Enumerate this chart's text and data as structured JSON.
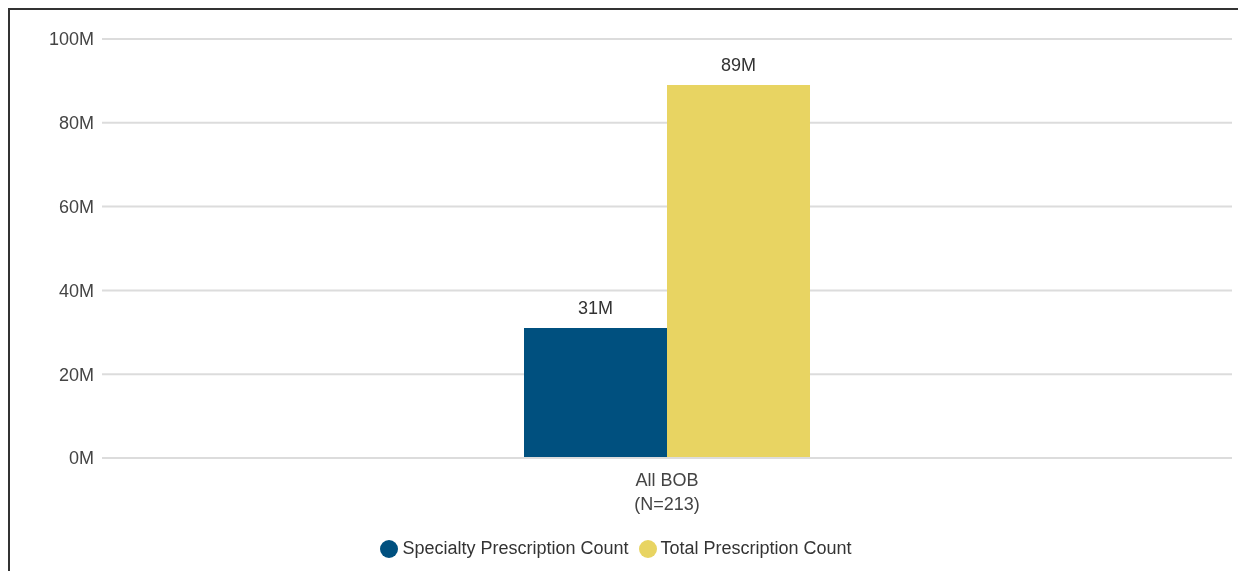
{
  "chart_data": {
    "type": "bar",
    "categories": [
      "All BOB\n(N=213)"
    ],
    "series": [
      {
        "name": "Specialty Prescription Count",
        "color": "#00507f",
        "values": [
          31
        ],
        "value_labels": [
          "31M"
        ]
      },
      {
        "name": "Total Prescription Count",
        "color": "#e8d462",
        "values": [
          89
        ],
        "value_labels": [
          "89M"
        ]
      }
    ],
    "ylim": [
      0,
      100
    ],
    "yticks": [
      {
        "value": 0,
        "label": "0M"
      },
      {
        "value": 20,
        "label": "20M"
      },
      {
        "value": 40,
        "label": "40M"
      },
      {
        "value": 60,
        "label": "60M"
      },
      {
        "value": 80,
        "label": "80M"
      },
      {
        "value": 100,
        "label": "100M"
      }
    ],
    "grid": "y",
    "legend": "bottom"
  }
}
